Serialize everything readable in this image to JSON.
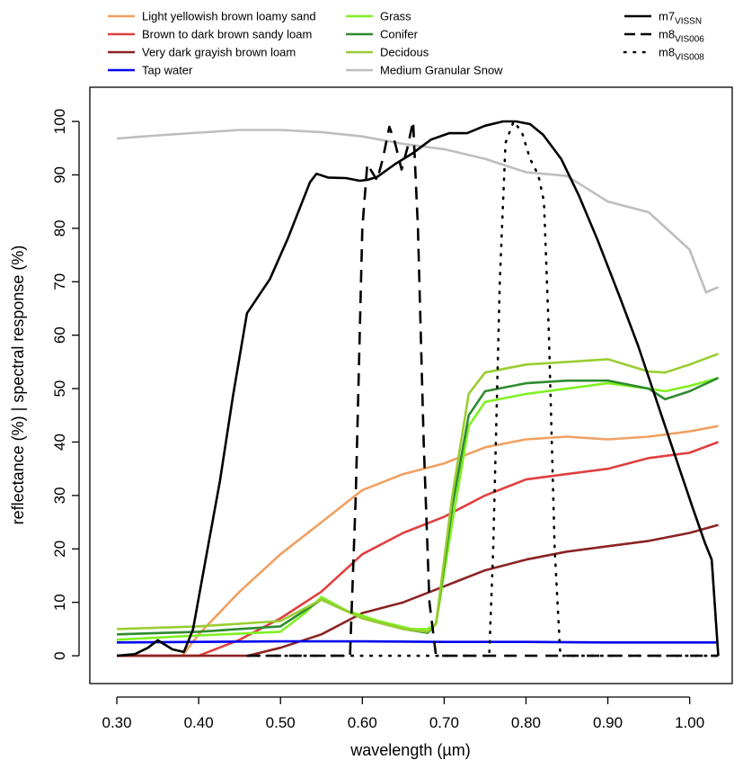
{
  "chart_data": {
    "type": "line",
    "x_label": "wavelength (µm)",
    "y_label": "reflectance (%) | spectral response (%)",
    "xlim": [
      0.267,
      1.052
    ],
    "ylim": [
      -5.2,
      106.4
    ],
    "xticks": [
      {
        "value": 0.3,
        "label": "0.30"
      },
      {
        "value": 0.4,
        "label": "0.40"
      },
      {
        "value": 0.5,
        "label": "0.50"
      },
      {
        "value": 0.6,
        "label": "0.60"
      },
      {
        "value": 0.7,
        "label": "0.70"
      },
      {
        "value": 0.8,
        "label": "0.80"
      },
      {
        "value": 0.9,
        "label": "0.90"
      },
      {
        "value": 1.0,
        "label": "1.00"
      }
    ],
    "yticks": [
      0,
      10,
      20,
      30,
      40,
      50,
      60,
      70,
      80,
      90,
      100
    ],
    "series": [
      {
        "name": "Light yellowish brown loamy sand",
        "color": "#f0a060",
        "line_style": "solid",
        "x": [
          0.3,
          0.35,
          0.38,
          0.4,
          0.45,
          0.5,
          0.55,
          0.6,
          0.65,
          0.7,
          0.75,
          0.8,
          0.85,
          0.9,
          0.95,
          1.0,
          1.035
        ],
        "values": [
          0,
          0,
          0,
          4,
          12,
          19,
          25,
          31,
          34,
          36,
          39,
          40.5,
          41,
          40.5,
          41,
          42,
          43
        ]
      },
      {
        "name": "Brown to dark brown sandy loam",
        "color": "#e04040",
        "line_style": "solid",
        "x": [
          0.3,
          0.35,
          0.4,
          0.45,
          0.5,
          0.55,
          0.6,
          0.65,
          0.7,
          0.75,
          0.8,
          0.85,
          0.9,
          0.95,
          1.0,
          1.035
        ],
        "values": [
          0,
          0,
          0,
          3,
          7,
          12,
          19,
          23,
          26,
          30,
          33,
          34,
          35,
          37,
          38,
          40
        ]
      },
      {
        "name": "Very dark grayish brown loam",
        "color": "#8b2323",
        "line_style": "solid",
        "x": [
          0.3,
          0.35,
          0.4,
          0.46,
          0.5,
          0.55,
          0.6,
          0.65,
          0.7,
          0.75,
          0.8,
          0.85,
          0.9,
          0.95,
          1.0,
          1.035
        ],
        "values": [
          0,
          0,
          0,
          0,
          1.5,
          4,
          8,
          10,
          13,
          16,
          18,
          19.5,
          20.5,
          21.5,
          23,
          24.5
        ]
      },
      {
        "name": "Tap water",
        "color": "#0000ee",
        "line_style": "solid",
        "x": [
          0.3,
          0.4,
          0.5,
          0.6,
          0.7,
          0.8,
          0.9,
          1.0,
          1.035
        ],
        "values": [
          2.5,
          2.6,
          2.7,
          2.7,
          2.6,
          2.6,
          2.5,
          2.5,
          2.5
        ]
      },
      {
        "name": "Grass",
        "color": "#80f020",
        "line_style": "solid",
        "x": [
          0.3,
          0.4,
          0.5,
          0.53,
          0.55,
          0.58,
          0.62,
          0.66,
          0.68,
          0.69,
          0.71,
          0.73,
          0.75,
          0.8,
          0.85,
          0.9,
          0.95,
          0.97,
          1.0,
          1.035
        ],
        "values": [
          3,
          3.8,
          4.5,
          8,
          11,
          8.5,
          6.5,
          5,
          5,
          6,
          25,
          43,
          47.5,
          49,
          50,
          51,
          50,
          49.5,
          50.5,
          52
        ]
      },
      {
        "name": "Conifer",
        "color": "#2e8b2e",
        "line_style": "solid",
        "x": [
          0.3,
          0.4,
          0.5,
          0.55,
          0.6,
          0.65,
          0.68,
          0.69,
          0.71,
          0.73,
          0.75,
          0.8,
          0.85,
          0.9,
          0.95,
          0.97,
          1.0,
          1.035
        ],
        "values": [
          4,
          4.5,
          5.5,
          10.5,
          7,
          5,
          4.3,
          6,
          28,
          45,
          49.5,
          51,
          51.5,
          51.5,
          50,
          48,
          49.5,
          52
        ]
      },
      {
        "name": "Decidous",
        "color": "#9acd32",
        "line_style": "solid",
        "x": [
          0.3,
          0.4,
          0.5,
          0.55,
          0.6,
          0.65,
          0.68,
          0.69,
          0.71,
          0.73,
          0.75,
          0.8,
          0.85,
          0.9,
          0.95,
          0.97,
          1.0,
          1.035
        ],
        "values": [
          5,
          5.5,
          6.5,
          10.5,
          7,
          5,
          4.5,
          6,
          30,
          49,
          53,
          54.5,
          55,
          55.5,
          53.2,
          53,
          54.5,
          56.5
        ]
      },
      {
        "name": "Medium Granular Snow",
        "color": "#bebebe",
        "line_style": "solid",
        "x": [
          0.3,
          0.35,
          0.4,
          0.45,
          0.5,
          0.55,
          0.6,
          0.65,
          0.7,
          0.75,
          0.8,
          0.85,
          0.9,
          0.95,
          1.0,
          1.02,
          1.035
        ],
        "values": [
          96.8,
          97.4,
          97.9,
          98.4,
          98.4,
          98,
          97.2,
          95.8,
          94.8,
          93,
          90.5,
          89.8,
          85,
          83,
          76,
          68,
          69
        ]
      },
      {
        "name": "m7",
        "name_sub": "VISSN",
        "color": "#000000",
        "line_style": "solid",
        "x": [
          0.3,
          0.322,
          0.338,
          0.35,
          0.368,
          0.382,
          0.393,
          0.409,
          0.426,
          0.442,
          0.459,
          0.487,
          0.509,
          0.536,
          0.544,
          0.558,
          0.58,
          0.597,
          0.607,
          0.618,
          0.64,
          0.662,
          0.684,
          0.706,
          0.728,
          0.75,
          0.772,
          0.788,
          0.805,
          0.821,
          0.843,
          0.865,
          0.887,
          0.915,
          0.937,
          0.959,
          0.981,
          1.003,
          1.019,
          1.027,
          1.035
        ],
        "values": [
          0,
          0.3,
          1.5,
          2.9,
          1.2,
          0.7,
          4.9,
          18.4,
          32.7,
          48.7,
          64.1,
          70.5,
          78.1,
          88.6,
          90.2,
          89.5,
          89.4,
          88.9,
          89.1,
          89.6,
          92,
          94.1,
          96.6,
          97.8,
          97.8,
          99.2,
          100,
          100,
          99.5,
          97.5,
          93,
          86,
          78,
          67,
          58,
          48,
          38,
          28,
          21,
          18,
          0
        ]
      },
      {
        "name": "m8",
        "name_sub": "VIS006",
        "color": "#000000",
        "line_style": "dashed",
        "x": [
          0.46,
          0.585,
          0.592,
          0.6,
          0.606,
          0.618,
          0.625,
          0.633,
          0.64,
          0.648,
          0.655,
          0.662,
          0.668,
          0.675,
          0.682,
          0.69,
          1.035
        ],
        "values": [
          0,
          0,
          30,
          80,
          92,
          89,
          93,
          99,
          96,
          91,
          95,
          100,
          80,
          40,
          10,
          0,
          0
        ]
      },
      {
        "name": "m8",
        "name_sub": "VIS008",
        "color": "#000000",
        "line_style": "dotted",
        "x": [
          0.46,
          0.755,
          0.76,
          0.768,
          0.775,
          0.785,
          0.795,
          0.805,
          0.815,
          0.822,
          0.828,
          0.835,
          0.842,
          1.035
        ],
        "values": [
          0,
          0,
          20,
          70,
          96,
          100,
          98,
          93,
          90,
          85,
          60,
          20,
          0,
          0
        ]
      }
    ]
  }
}
